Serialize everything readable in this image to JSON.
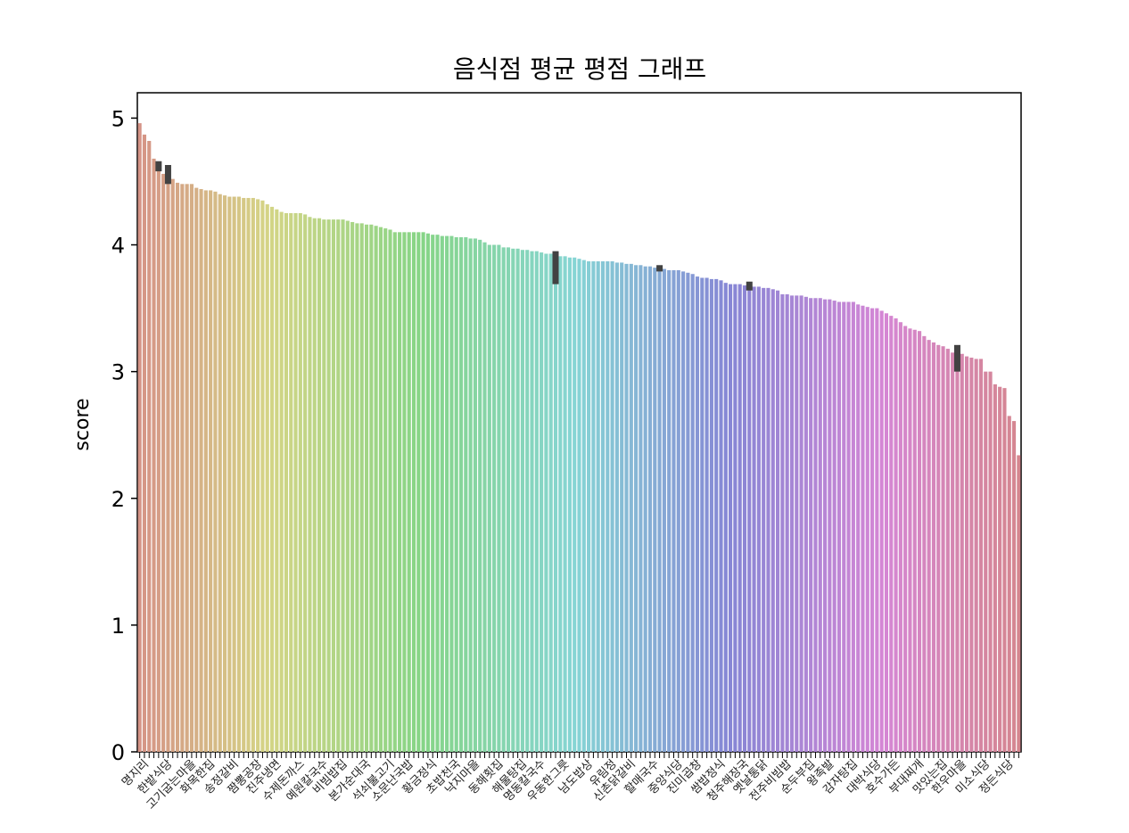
{
  "chart_data": {
    "type": "bar",
    "title": "음식점 평균 평점 그래프",
    "xlabel": "",
    "ylabel": "score",
    "ylim": [
      0,
      5.2
    ],
    "yticks": [
      "0",
      "1",
      "2",
      "3",
      "4",
      "5"
    ],
    "grid": false,
    "legend": "none",
    "values": [
      4.96,
      4.87,
      4.82,
      4.68,
      4.62,
      4.56,
      4.55,
      4.52,
      4.49,
      4.48,
      4.48,
      4.48,
      4.45,
      4.44,
      4.43,
      4.43,
      4.42,
      4.4,
      4.39,
      4.38,
      4.38,
      4.38,
      4.37,
      4.37,
      4.37,
      4.36,
      4.35,
      4.32,
      4.3,
      4.28,
      4.26,
      4.25,
      4.25,
      4.25,
      4.25,
      4.24,
      4.22,
      4.21,
      4.21,
      4.2,
      4.2,
      4.2,
      4.2,
      4.2,
      4.19,
      4.18,
      4.17,
      4.17,
      4.16,
      4.16,
      4.15,
      4.14,
      4.13,
      4.12,
      4.1,
      4.1,
      4.1,
      4.1,
      4.1,
      4.1,
      4.1,
      4.09,
      4.08,
      4.08,
      4.07,
      4.07,
      4.07,
      4.06,
      4.06,
      4.06,
      4.05,
      4.05,
      4.04,
      4.02,
      4.0,
      4.0,
      4.0,
      3.98,
      3.98,
      3.97,
      3.97,
      3.96,
      3.96,
      3.95,
      3.95,
      3.94,
      3.93,
      3.93,
      3.82,
      3.91,
      3.91,
      3.9,
      3.9,
      3.89,
      3.88,
      3.87,
      3.87,
      3.87,
      3.87,
      3.87,
      3.87,
      3.86,
      3.86,
      3.85,
      3.85,
      3.84,
      3.84,
      3.83,
      3.83,
      3.82,
      3.82,
      3.81,
      3.8,
      3.8,
      3.8,
      3.79,
      3.78,
      3.77,
      3.75,
      3.74,
      3.74,
      3.73,
      3.73,
      3.72,
      3.7,
      3.69,
      3.69,
      3.69,
      3.68,
      3.68,
      3.67,
      3.67,
      3.66,
      3.66,
      3.65,
      3.64,
      3.61,
      3.61,
      3.6,
      3.6,
      3.6,
      3.59,
      3.58,
      3.58,
      3.58,
      3.57,
      3.57,
      3.56,
      3.55,
      3.55,
      3.55,
      3.55,
      3.53,
      3.52,
      3.51,
      3.5,
      3.5,
      3.48,
      3.46,
      3.44,
      3.42,
      3.39,
      3.36,
      3.34,
      3.33,
      3.32,
      3.28,
      3.25,
      3.23,
      3.21,
      3.2,
      3.18,
      3.15,
      3.14,
      3.14,
      3.12,
      3.11,
      3.1,
      3.1,
      3.0,
      3.0,
      2.9,
      2.88,
      2.87,
      2.65,
      2.61,
      2.34
    ],
    "errorbars": [
      {
        "index": 4,
        "low": 4.58,
        "high": 4.66
      },
      {
        "index": 6,
        "low": 4.48,
        "high": 4.63
      },
      {
        "index": 88,
        "low": 3.69,
        "high": 3.95
      },
      {
        "index": 110,
        "low": 3.79,
        "high": 3.84
      },
      {
        "index": 129,
        "low": 3.64,
        "high": 3.71
      },
      {
        "index": 173,
        "low": 3.0,
        "high": 3.21
      }
    ],
    "categories_visible": [
      "명지리",
      "한밭식당",
      "고기굽는마을",
      "화목한집",
      "송정갈비",
      "짬뽕공장",
      "진주냉면",
      "수제돈까스",
      "예원칼국수",
      "비빔밥집",
      "본가순대국",
      "석쇠불고기",
      "소문난국밥",
      "황금정식",
      "초밥천국",
      "낙지마을",
      "동해횟집",
      "해물탕집",
      "명동칼국수",
      "우동한그릇",
      "남도밥상",
      "유림정",
      "신촌닭갈비",
      "할매국수",
      "중앙식당",
      "진미곱창",
      "쌈밥정식",
      "청주해장국",
      "옛날통닭",
      "전주비빔밥",
      "순두부집",
      "왕족발",
      "감자탕집",
      "대박식당",
      "호수가든",
      "부대찌개",
      "맛있는집",
      "한우마을",
      "미소식당",
      "정든식당"
    ]
  }
}
